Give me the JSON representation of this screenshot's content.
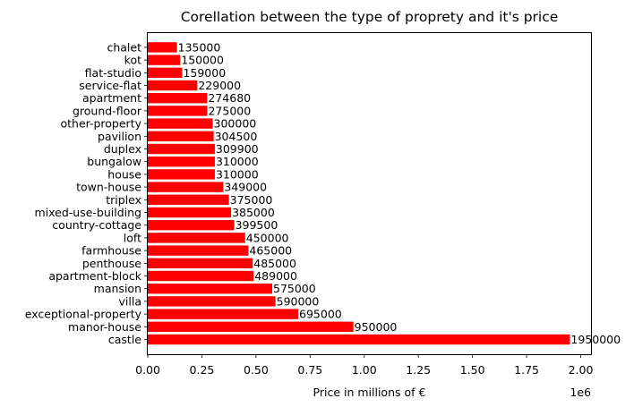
{
  "chart_data": {
    "type": "bar",
    "orientation": "horizontal",
    "title": "Corellation between the type of proprety and it's price",
    "xlabel": "Price in millions of €",
    "ylabel": "",
    "x_scale_label": "1e6",
    "xlim": [
      0,
      2047500
    ],
    "x_ticks": [
      {
        "value": 0,
        "label": "0.00"
      },
      {
        "value": 250000,
        "label": "0.25"
      },
      {
        "value": 500000,
        "label": "0.50"
      },
      {
        "value": 750000,
        "label": "0.75"
      },
      {
        "value": 1000000,
        "label": "1.00"
      },
      {
        "value": 1250000,
        "label": "1.25"
      },
      {
        "value": 1500000,
        "label": "1.50"
      },
      {
        "value": 1750000,
        "label": "1.75"
      },
      {
        "value": 2000000,
        "label": "2.00"
      }
    ],
    "bar_color": "#ff0000",
    "grid": false,
    "legend": "none",
    "categories": [
      "castle",
      "manor-house",
      "exceptional-property",
      "villa",
      "mansion",
      "apartment-block",
      "penthouse",
      "farmhouse",
      "loft",
      "country-cottage",
      "mixed-use-building",
      "triplex",
      "town-house",
      "house",
      "bungalow",
      "duplex",
      "pavilion",
      "other-property",
      "ground-floor",
      "apartment",
      "service-flat",
      "flat-studio",
      "kot",
      "chalet"
    ],
    "values": [
      1950000,
      950000,
      695000,
      590000,
      575000,
      489000,
      485000,
      465000,
      450000,
      399500,
      385000,
      375000,
      349000,
      310000,
      310000,
      309900,
      304500,
      300000,
      275000,
      274680,
      229000,
      159000,
      150000,
      135000
    ],
    "value_labels": [
      "1950000",
      "950000",
      "695000",
      "590000",
      "575000",
      "489000",
      "485000",
      "465000",
      "450000",
      "399500",
      "385000",
      "375000",
      "349000",
      "310000",
      "310000",
      "309900",
      "304500",
      "300000",
      "275000",
      "274680",
      "229000",
      "159000",
      "150000",
      "135000"
    ]
  }
}
